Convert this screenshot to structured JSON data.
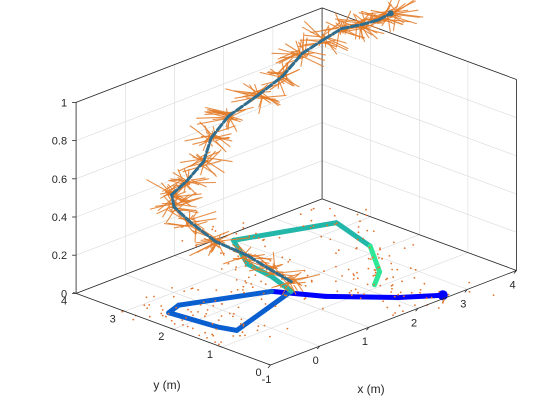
{
  "chart_data": {
    "type": "line",
    "title": "",
    "xlabel": "x (m)",
    "ylabel": "y (m)",
    "zlabel": "",
    "xlim": [
      -1,
      4
    ],
    "ylim": [
      0,
      4
    ],
    "zlim": [
      0,
      1
    ],
    "x_ticks": [
      "-1",
      "0",
      "1",
      "2",
      "3",
      "4"
    ],
    "y_ticks": [
      "0",
      "1",
      "2",
      "3",
      "4"
    ],
    "z_ticks": [
      "0",
      "0.2",
      "0.4",
      "0.6",
      "0.8",
      "1"
    ],
    "grid": true,
    "colors": {
      "scatter": "#e2722a",
      "trajectory": "#2f6e8f",
      "ground_start": "#0000ff",
      "ground_mid": "#0a5fd0",
      "ground_teal": "#22b7a8",
      "ground_end": "#2ee898"
    },
    "series": [
      {
        "type": "line3d",
        "values": [
          [
            2.6,
            0.1,
            0.0
          ],
          [
            2.1,
            0.5,
            0.0
          ],
          [
            1.4,
            1.3,
            0.0
          ],
          [
            1.0,
            2.0,
            0.0
          ],
          [
            -0.3,
            2.6,
            0.0
          ],
          [
            -0.6,
            2.5,
            0.0
          ],
          [
            -0.5,
            1.6,
            0.0
          ],
          [
            -0.4,
            1.3,
            0.0
          ],
          [
            1.2,
            1.8,
            0.0
          ],
          [
            1.4,
            2.4,
            0.0
          ],
          [
            1.5,
            3.0,
            0.0
          ],
          [
            2.0,
            3.8,
            0.0
          ],
          [
            3.5,
            3.2,
            0.0
          ],
          [
            3.2,
            2.2,
            0.0
          ],
          [
            2.6,
            1.4,
            0.0
          ],
          [
            2.2,
            1.1,
            0.0
          ]
        ]
      },
      {
        "type": "line3d",
        "values": [
          [
            1.2,
            1.8,
            0.05
          ],
          [
            1.0,
            2.0,
            0.11
          ],
          [
            0.8,
            2.3,
            0.18
          ],
          [
            0.55,
            2.7,
            0.24
          ],
          [
            0.45,
            3.1,
            0.31
          ],
          [
            0.4,
            3.4,
            0.37
          ],
          [
            0.45,
            3.5,
            0.42
          ],
          [
            0.7,
            3.45,
            0.47
          ],
          [
            1.1,
            3.5,
            0.53
          ],
          [
            1.45,
            3.7,
            0.6
          ],
          [
            1.9,
            3.8,
            0.66
          ],
          [
            2.45,
            3.75,
            0.72
          ],
          [
            2.95,
            3.75,
            0.77
          ],
          [
            3.4,
            3.8,
            0.84
          ],
          [
            3.8,
            3.75,
            0.88
          ],
          [
            4.1,
            3.7,
            0.91
          ],
          [
            4.4,
            3.6,
            0.91
          ],
          [
            4.7,
            3.55,
            0.91
          ],
          [
            5.0,
            3.6,
            0.91
          ]
        ]
      }
    ]
  }
}
